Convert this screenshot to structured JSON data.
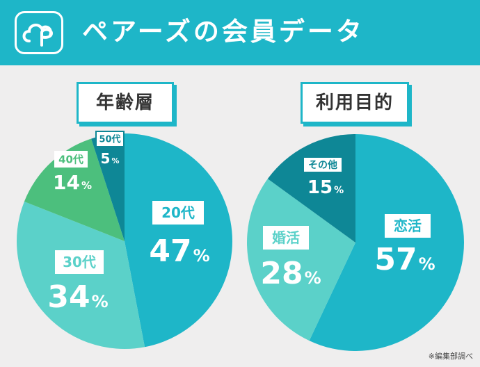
{
  "header": {
    "title": "ペアーズの会員データ",
    "logo_icon": "pairs-cloud-logo-icon",
    "background_color": "#1eb6c8"
  },
  "chart_data": [
    {
      "type": "pie",
      "title": "年齢層",
      "slices": [
        {
          "label": "20代",
          "value": 47,
          "value_text": "47",
          "unit": "%",
          "color": "#1eb6c8"
        },
        {
          "label": "30代",
          "value": 34,
          "value_text": "34",
          "unit": "%",
          "color": "#5bd1c9"
        },
        {
          "label": "40代",
          "value": 14,
          "value_text": "14",
          "unit": "%",
          "color": "#4cbf7d"
        },
        {
          "label": "50代",
          "value": 5,
          "value_text": "5",
          "unit": "%",
          "color": "#0e8796"
        }
      ]
    },
    {
      "type": "pie",
      "title": "利用目的",
      "slices": [
        {
          "label": "恋活",
          "value": 57,
          "value_text": "57",
          "unit": "%",
          "color": "#1eb6c8"
        },
        {
          "label": "婚活",
          "value": 28,
          "value_text": "28",
          "unit": "%",
          "color": "#5bd1c9"
        },
        {
          "label": "その他",
          "value": 15,
          "value_text": "15",
          "unit": "%",
          "color": "#0e8796"
        }
      ]
    }
  ],
  "footer": {
    "note": "※編集部調べ"
  }
}
